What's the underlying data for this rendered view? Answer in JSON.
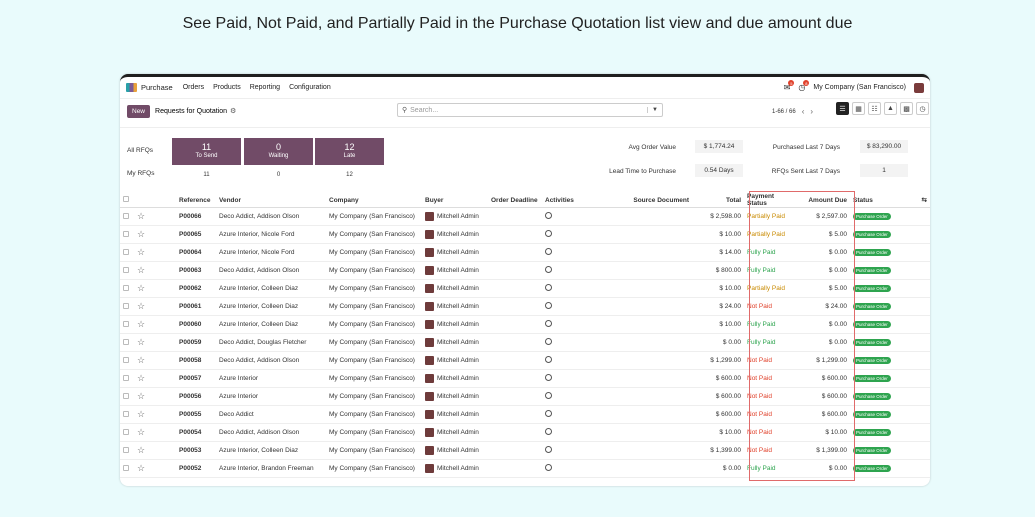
{
  "caption": "See Paid, Not Paid, and Partially Paid in the Purchase Quotation list view and due amount due",
  "colors": {
    "brand": "#714b67",
    "paid": "#2ea44f",
    "partial": "#c98a00",
    "not_paid": "#e0402a",
    "highlight": "#e06a6a"
  },
  "topbar": {
    "app": "Purchase",
    "menus": [
      "Orders",
      "Products",
      "Reporting",
      "Configuration"
    ],
    "chat_badge": "5",
    "activity_badge": "8",
    "company": "My Company (San Francisco)"
  },
  "control": {
    "new_label": "New",
    "title": "Requests for Quotation",
    "search_placeholder": "Search...",
    "pager": "1-66 / 66"
  },
  "dashboard": {
    "all_rfqs": "All RFQs",
    "my_rfqs": "My RFQs",
    "tiles": [
      {
        "num": "11",
        "label": "To Send",
        "sub": "11"
      },
      {
        "num": "0",
        "label": "Waiting",
        "sub": "0"
      },
      {
        "num": "12",
        "label": "Late",
        "sub": "12"
      }
    ],
    "kpis": [
      {
        "label": "Avg Order Value",
        "value": "$ 1,774.24"
      },
      {
        "label": "Purchased Last 7 Days",
        "value": "$ 83,290.00"
      },
      {
        "label": "Lead Time to Purchase",
        "value": "0.54 Days"
      },
      {
        "label": "RFQs Sent Last 7 Days",
        "value": "1"
      }
    ]
  },
  "table": {
    "headers": {
      "reference": "Reference",
      "vendor": "Vendor",
      "company": "Company",
      "buyer": "Buyer",
      "deadline": "Order Deadline",
      "activities": "Activities",
      "source": "Source Document",
      "total": "Total",
      "payment": "Payment Status",
      "due": "Amount Due",
      "status": "Status"
    },
    "rows": [
      {
        "ref": "P00066",
        "vendor": "Deco Addict, Addison Olson",
        "company": "My Company (San Francisco)",
        "buyer": "Mitchell Admin",
        "total": "$ 2,598.00",
        "payment": "Partially Paid",
        "ptype": "partial",
        "due": "$ 2,597.00",
        "status": "Purchase Order"
      },
      {
        "ref": "P00065",
        "vendor": "Azure Interior, Nicole Ford",
        "company": "My Company (San Francisco)",
        "buyer": "Mitchell Admin",
        "total": "$ 10.00",
        "payment": "Partially Paid",
        "ptype": "partial",
        "due": "$ 5.00",
        "status": "Purchase Order"
      },
      {
        "ref": "P00064",
        "vendor": "Azure Interior, Nicole Ford",
        "company": "My Company (San Francisco)",
        "buyer": "Mitchell Admin",
        "total": "$ 14.00",
        "payment": "Fully Paid",
        "ptype": "paid",
        "due": "$ 0.00",
        "status": "Purchase Order"
      },
      {
        "ref": "P00063",
        "vendor": "Deco Addict, Addison Olson",
        "company": "My Company (San Francisco)",
        "buyer": "Mitchell Admin",
        "total": "$ 800.00",
        "payment": "Fully Paid",
        "ptype": "paid",
        "due": "$ 0.00",
        "status": "Purchase Order"
      },
      {
        "ref": "P00062",
        "vendor": "Azure Interior, Colleen Diaz",
        "company": "My Company (San Francisco)",
        "buyer": "Mitchell Admin",
        "total": "$ 10.00",
        "payment": "Partially Paid",
        "ptype": "partial",
        "due": "$ 5.00",
        "status": "Purchase Order"
      },
      {
        "ref": "P00061",
        "vendor": "Azure Interior, Colleen Diaz",
        "company": "My Company (San Francisco)",
        "buyer": "Mitchell Admin",
        "total": "$ 24.00",
        "payment": "Not Paid",
        "ptype": "not",
        "due": "$ 24.00",
        "status": "Purchase Order"
      },
      {
        "ref": "P00060",
        "vendor": "Azure Interior, Colleen Diaz",
        "company": "My Company (San Francisco)",
        "buyer": "Mitchell Admin",
        "total": "$ 10.00",
        "payment": "Fully Paid",
        "ptype": "paid",
        "due": "$ 0.00",
        "status": "Purchase Order"
      },
      {
        "ref": "P00059",
        "vendor": "Deco Addict, Douglas Fletcher",
        "company": "My Company (San Francisco)",
        "buyer": "Mitchell Admin",
        "total": "$ 0.00",
        "payment": "Fully Paid",
        "ptype": "paid",
        "due": "$ 0.00",
        "status": "Purchase Order"
      },
      {
        "ref": "P00058",
        "vendor": "Deco Addict, Addison Olson",
        "company": "My Company (San Francisco)",
        "buyer": "Mitchell Admin",
        "total": "$ 1,299.00",
        "payment": "Not Paid",
        "ptype": "not",
        "due": "$ 1,299.00",
        "status": "Purchase Order"
      },
      {
        "ref": "P00057",
        "vendor": "Azure Interior",
        "company": "My Company (San Francisco)",
        "buyer": "Mitchell Admin",
        "total": "$ 600.00",
        "payment": "Not Paid",
        "ptype": "not",
        "due": "$ 600.00",
        "status": "Purchase Order"
      },
      {
        "ref": "P00056",
        "vendor": "Azure Interior",
        "company": "My Company (San Francisco)",
        "buyer": "Mitchell Admin",
        "total": "$ 600.00",
        "payment": "Not Paid",
        "ptype": "not",
        "due": "$ 600.00",
        "status": "Purchase Order"
      },
      {
        "ref": "P00055",
        "vendor": "Deco Addict",
        "company": "My Company (San Francisco)",
        "buyer": "Mitchell Admin",
        "total": "$ 600.00",
        "payment": "Not Paid",
        "ptype": "not",
        "due": "$ 600.00",
        "status": "Purchase Order"
      },
      {
        "ref": "P00054",
        "vendor": "Deco Addict, Addison Olson",
        "company": "My Company (San Francisco)",
        "buyer": "Mitchell Admin",
        "total": "$ 10.00",
        "payment": "Not Paid",
        "ptype": "not",
        "due": "$ 10.00",
        "status": "Purchase Order"
      },
      {
        "ref": "P00053",
        "vendor": "Azure Interior, Colleen Diaz",
        "company": "My Company (San Francisco)",
        "buyer": "Mitchell Admin",
        "total": "$ 1,399.00",
        "payment": "Not Paid",
        "ptype": "not",
        "due": "$ 1,399.00",
        "status": "Purchase Order"
      },
      {
        "ref": "P00052",
        "vendor": "Azure Interior, Brandon Freeman",
        "company": "My Company (San Francisco)",
        "buyer": "Mitchell Admin",
        "total": "$ 0.00",
        "payment": "Fully Paid",
        "ptype": "paid",
        "due": "$ 0.00",
        "status": "Purchase Order"
      }
    ]
  }
}
